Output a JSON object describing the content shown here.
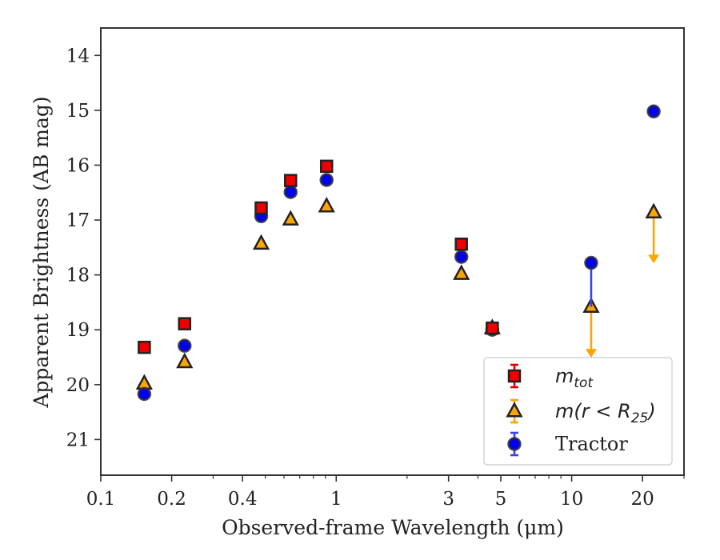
{
  "chart_data": {
    "type": "scatter",
    "xlabel": "Observed-frame Wavelength (μm)",
    "ylabel": "Apparent Brightness (AB mag)",
    "x_scale": "log",
    "xlim": [
      0.1,
      30
    ],
    "ylim": [
      21.65,
      13.5
    ],
    "y_inverted": true,
    "x_ticks": [
      {
        "value": 0.1,
        "label": "0.1"
      },
      {
        "value": 0.2,
        "label": "0.2"
      },
      {
        "value": 0.4,
        "label": "0.4"
      },
      {
        "value": 1,
        "label": "1"
      },
      {
        "value": 3,
        "label": "3"
      },
      {
        "value": 5,
        "label": "5"
      },
      {
        "value": 10,
        "label": "10"
      },
      {
        "value": 20,
        "label": "20"
      }
    ],
    "y_ticks": [
      {
        "value": 14,
        "label": "14"
      },
      {
        "value": 15,
        "label": "15"
      },
      {
        "value": 16,
        "label": "16"
      },
      {
        "value": 17,
        "label": "17"
      },
      {
        "value": 18,
        "label": "18"
      },
      {
        "value": 19,
        "label": "19"
      },
      {
        "value": 20,
        "label": "20"
      },
      {
        "value": 21,
        "label": "21"
      }
    ],
    "grid": false,
    "legend_position": "bottom-right",
    "series": [
      {
        "name": "m_tot",
        "legend_main": "m",
        "legend_sub": "tot",
        "marker": "square",
        "color": "#ee0000",
        "errcolor": "#dd0000",
        "points": [
          {
            "x": 0.153,
            "y": 19.32
          },
          {
            "x": 0.227,
            "y": 18.89
          },
          {
            "x": 0.48,
            "y": 16.78
          },
          {
            "x": 0.64,
            "y": 16.28
          },
          {
            "x": 0.91,
            "y": 16.02
          },
          {
            "x": 3.4,
            "y": 17.44
          },
          {
            "x": 4.6,
            "y": 18.97
          }
        ]
      },
      {
        "name": "m(r < R_25)",
        "legend_main": "m(r < R",
        "legend_sub": "25",
        "legend_close": ")",
        "marker": "triangle",
        "color": "#ffa500",
        "errcolor": "#ffa500",
        "points": [
          {
            "x": 0.153,
            "y": 19.98,
            "upper_limit": false
          },
          {
            "x": 0.227,
            "y": 19.59,
            "upper_limit": false
          },
          {
            "x": 0.48,
            "y": 17.43,
            "upper_limit": false
          },
          {
            "x": 0.64,
            "y": 16.99,
            "upper_limit": false
          },
          {
            "x": 0.91,
            "y": 16.75,
            "upper_limit": false
          },
          {
            "x": 3.4,
            "y": 17.98,
            "upper_limit": false
          },
          {
            "x": 4.6,
            "y": 18.97,
            "upper_limit": false
          },
          {
            "x": 12.1,
            "y": 18.58,
            "upper_limit": true,
            "arrow_to": 19.48
          },
          {
            "x": 22.3,
            "y": 16.86,
            "upper_limit": true,
            "arrow_to": 17.76
          }
        ]
      },
      {
        "name": "Tractor",
        "legend_main": "Tractor",
        "marker": "circle",
        "color": "#0000ee",
        "errcolor": "#3344ee",
        "points": [
          {
            "x": 0.153,
            "y": 20.17
          },
          {
            "x": 0.227,
            "y": 19.29
          },
          {
            "x": 0.48,
            "y": 16.93
          },
          {
            "x": 0.64,
            "y": 16.49
          },
          {
            "x": 0.91,
            "y": 16.27
          },
          {
            "x": 3.4,
            "y": 17.67
          },
          {
            "x": 4.6,
            "y": 19.0
          },
          {
            "x": 12.1,
            "y": 17.78,
            "yerr_high": 18.58
          },
          {
            "x": 22.3,
            "y": 15.02
          }
        ]
      }
    ]
  }
}
